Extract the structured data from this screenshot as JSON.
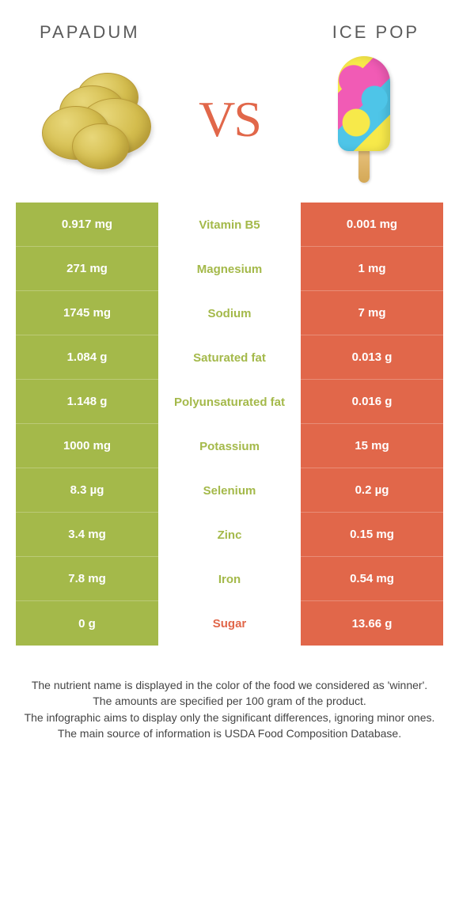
{
  "colors": {
    "left": "#a4b94a",
    "right": "#e1674a",
    "bg": "#ffffff",
    "text": "#5a5a5a"
  },
  "header": {
    "left_title": "Papadum",
    "right_title": "Ice pop",
    "vs_label": "VS"
  },
  "rows": [
    {
      "label": "Vitamin B5",
      "left": "0.917 mg",
      "right": "0.001 mg",
      "winner": "left"
    },
    {
      "label": "Magnesium",
      "left": "271 mg",
      "right": "1 mg",
      "winner": "left"
    },
    {
      "label": "Sodium",
      "left": "1745 mg",
      "right": "7 mg",
      "winner": "left"
    },
    {
      "label": "Saturated fat",
      "left": "1.084 g",
      "right": "0.013 g",
      "winner": "left"
    },
    {
      "label": "Polyunsaturated fat",
      "left": "1.148 g",
      "right": "0.016 g",
      "winner": "left"
    },
    {
      "label": "Potassium",
      "left": "1000 mg",
      "right": "15 mg",
      "winner": "left"
    },
    {
      "label": "Selenium",
      "left": "8.3 µg",
      "right": "0.2 µg",
      "winner": "left"
    },
    {
      "label": "Zinc",
      "left": "3.4 mg",
      "right": "0.15 mg",
      "winner": "left"
    },
    {
      "label": "Iron",
      "left": "7.8 mg",
      "right": "0.54 mg",
      "winner": "left"
    },
    {
      "label": "Sugar",
      "left": "0 g",
      "right": "13.66 g",
      "winner": "right"
    }
  ],
  "footnotes": [
    "The nutrient name is displayed in the color of the food we considered as 'winner'.",
    "The amounts are specified per 100 gram of the product.",
    "The infographic aims to display only the significant differences, ignoring minor ones.",
    "The main source of information is USDA Food Composition Database."
  ]
}
